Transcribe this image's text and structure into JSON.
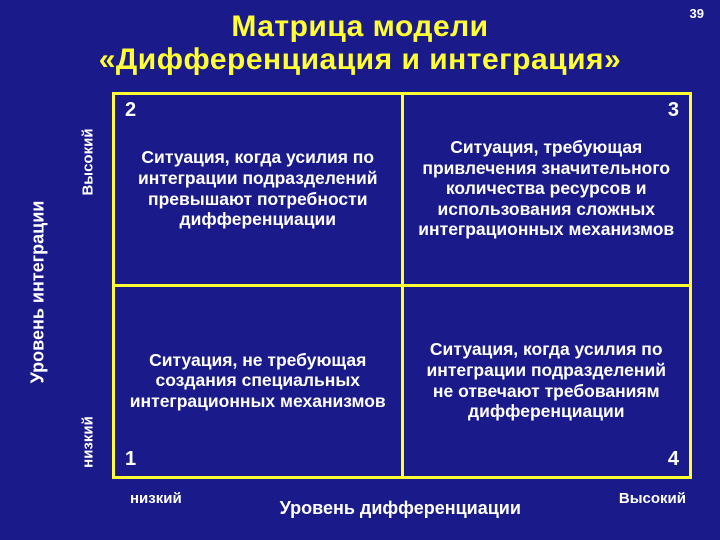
{
  "page_number": "39",
  "title_line1": "Матрица модели",
  "title_line2": "«Дифференциация и интеграция»",
  "colors": {
    "background": "#1a1a8a",
    "accent": "#ffff33",
    "text": "#ffffff"
  },
  "y_axis": {
    "title": "Уровень интеграции",
    "high": "Высокий",
    "low": "низкий"
  },
  "x_axis": {
    "title": "Уровень дифференциации",
    "low": "низкий",
    "high": "Высокий"
  },
  "matrix": {
    "type": "2x2-matrix",
    "border_color": "#ffff33",
    "border_width": 3,
    "cells": {
      "top_left": {
        "num": "2",
        "text": "Ситуация, когда усилия по интеграции подразделений превышают потребности дифференциации"
      },
      "top_right": {
        "num": "3",
        "text": "Ситуация, требующая привлечения значительного количества ресурсов и использования сложных интеграционных механизмов"
      },
      "bottom_left": {
        "num": "1",
        "text": "Ситуация, не требующая создания специальных интеграционных механизмов"
      },
      "bottom_right": {
        "num": "4",
        "text": "Ситуация, когда усилия по интеграции подразделений не отвечают требованиям дифференциации"
      }
    }
  },
  "typography": {
    "title_fontsize_pt": 30,
    "axis_title_fontsize_pt": 18,
    "axis_end_fontsize_pt": 15,
    "cell_fontsize_pt": 17.5,
    "cell_num_fontsize_pt": 20,
    "font_weight": "900"
  }
}
